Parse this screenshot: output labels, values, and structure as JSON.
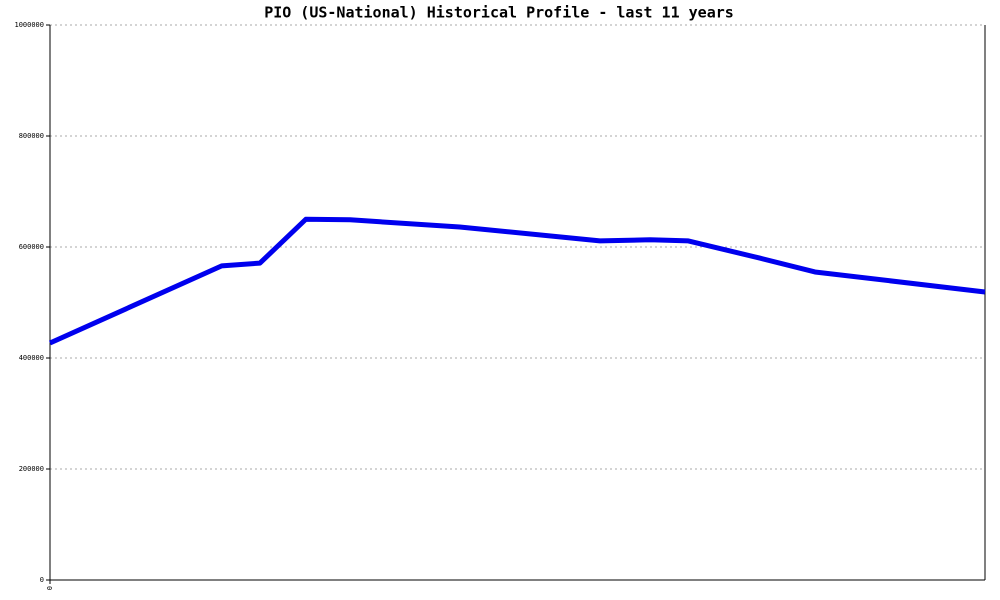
{
  "chart_data": {
    "type": "line",
    "title": "PIO (US-National) Historical Profile - last 11 years",
    "x": [
      0,
      2.02,
      2.47,
      3.01,
      3.53,
      4.82,
      6.47,
      7.06,
      7.51,
      8.35,
      9.0,
      11
    ],
    "series": [
      {
        "name": "PIO",
        "color": "#0000ee",
        "values": [
          427000,
          566000,
          571000,
          650000,
          649000,
          636000,
          611000,
          613000,
          611000,
          580000,
          555000,
          519000
        ]
      }
    ],
    "xlim": [
      0,
      11
    ],
    "xticks": [
      0
    ],
    "ylim": [
      0,
      1000000
    ],
    "yticks": [
      0,
      200000,
      400000,
      600000,
      800000,
      1000000
    ],
    "grid": true
  }
}
